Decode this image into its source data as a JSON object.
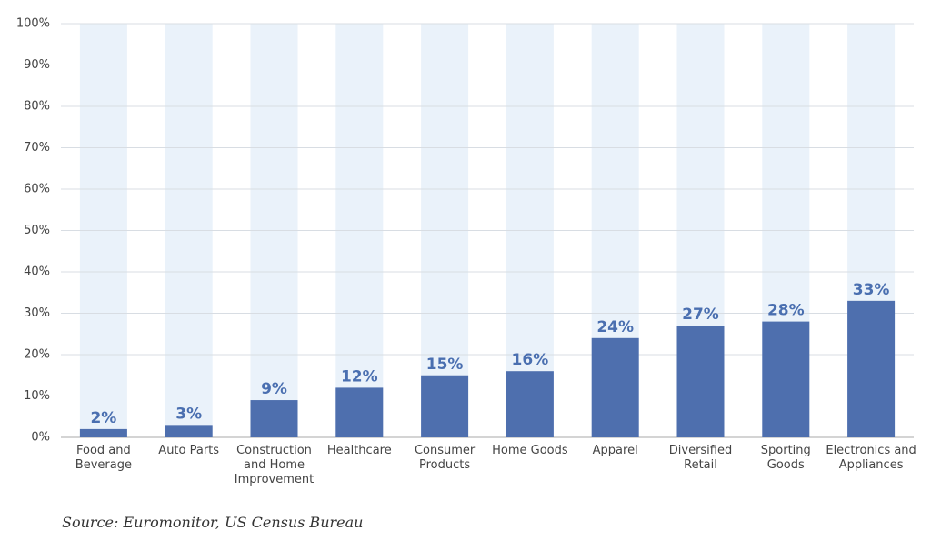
{
  "chart_data": {
    "type": "bar",
    "categories": [
      "Food and Beverage",
      "Auto Parts",
      "Construction and Home Improvement",
      "Healthcare",
      "Consumer Products",
      "Home Goods",
      "Apparel",
      "Diversified Retail",
      "Sporting Goods",
      "Electronics and Appliances"
    ],
    "values": [
      2,
      3,
      9,
      12,
      15,
      16,
      24,
      27,
      28,
      33
    ],
    "value_labels": [
      "2%",
      "3%",
      "9%",
      "12%",
      "15%",
      "16%",
      "24%",
      "27%",
      "28%",
      "33%"
    ],
    "color": "#4e6fae",
    "ylim": [
      0,
      100
    ],
    "yticks": [
      {
        "value": 0,
        "label": "0%"
      },
      {
        "value": 10,
        "label": "10%"
      },
      {
        "value": 20,
        "label": "20%"
      },
      {
        "value": 30,
        "label": "30%"
      },
      {
        "value": 40,
        "label": "40%"
      },
      {
        "value": 50,
        "label": "50%"
      },
      {
        "value": 60,
        "label": "60%"
      },
      {
        "value": 70,
        "label": "70%"
      },
      {
        "value": 80,
        "label": "80%"
      },
      {
        "value": 90,
        "label": "90%"
      },
      {
        "value": 100,
        "label": "100%"
      }
    ],
    "grid": true,
    "source": "Source: Euromonitor, US Census Bureau"
  }
}
